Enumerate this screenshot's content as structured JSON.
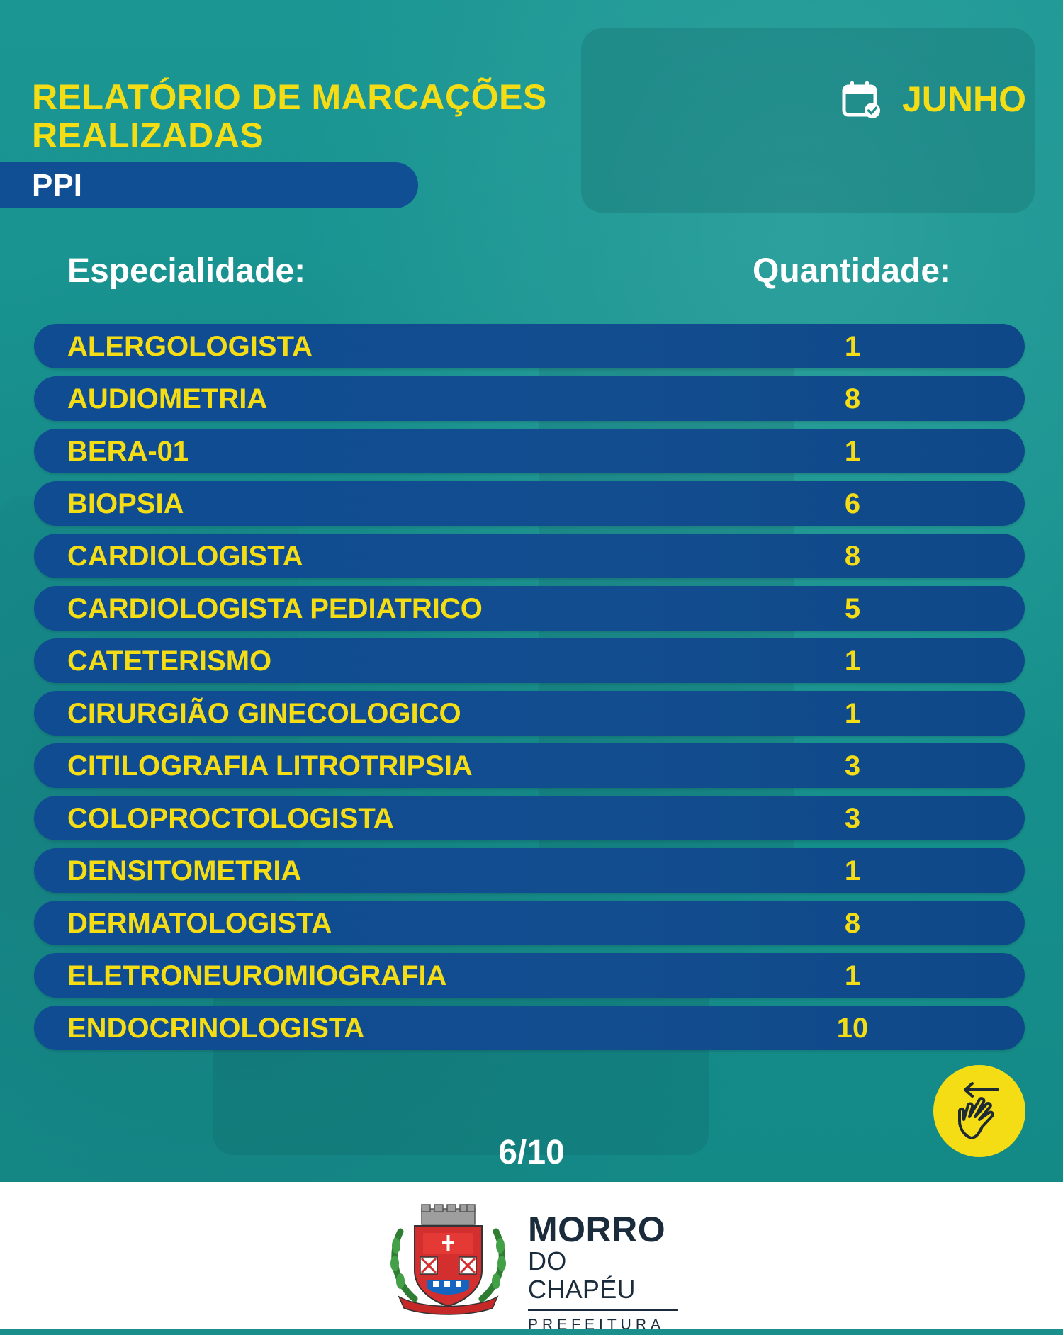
{
  "header": {
    "title_line1": "RELATÓRIO DE MARCAÇÕES",
    "title_line2": "REALIZADAS",
    "month": "JUNHO",
    "calendar_icon": "calendar-check-icon",
    "category": "PPI"
  },
  "table": {
    "col_specialty": "Especialidade:",
    "col_quantity": "Quantidade:",
    "rows": [
      {
        "name": "ALERGOLOGISTA",
        "qty": "1"
      },
      {
        "name": "AUDIOMETRIA",
        "qty": "8"
      },
      {
        "name": "BERA-01",
        "qty": "1"
      },
      {
        "name": "BIOPSIA",
        "qty": "6"
      },
      {
        "name": "CARDIOLOGISTA",
        "qty": "8"
      },
      {
        "name": "CARDIOLOGISTA PEDIATRICO",
        "qty": "5"
      },
      {
        "name": "CATETERISMO",
        "qty": "1"
      },
      {
        "name": "CIRURGIÃO GINECOLOGICO",
        "qty": "1"
      },
      {
        "name": "CITILOGRAFIA LITROTRIPSIA",
        "qty": "3"
      },
      {
        "name": "COLOPROCTOLOGISTA",
        "qty": "3"
      },
      {
        "name": "DENSITOMETRIA",
        "qty": "1"
      },
      {
        "name": "DERMATOLOGISTA",
        "qty": "8"
      },
      {
        "name": "ELETRONEUROMIOGRAFIA",
        "qty": "1"
      },
      {
        "name": "ENDOCRINOLOGISTA",
        "qty": "10"
      }
    ]
  },
  "navigation": {
    "page_indicator": "6/10",
    "swipe_icon": "swipe-hand-icon"
  },
  "footer": {
    "brand_line1": "MORRO",
    "brand_line2": "DO CHAPÉU",
    "brand_line3": "PREFEITURA",
    "crest_text": "MORRO DO CHAPÉU"
  },
  "colors": {
    "accent_yellow": "#f5dd16",
    "pill_blue": "#104f94",
    "background_teal": "#1a8f8c"
  }
}
